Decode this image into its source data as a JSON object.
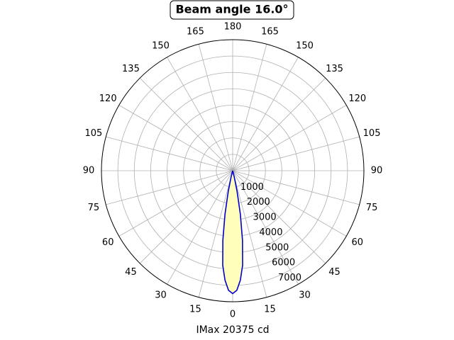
{
  "chart_data": {
    "type": "polar",
    "title": "Beam angle 16.0°",
    "xlabel": "IMax 20375 cd",
    "rlim": [
      0,
      8000
    ],
    "rticks": [
      1000,
      2000,
      3000,
      4000,
      5000,
      6000,
      7000
    ],
    "thetaticks": [
      0,
      15,
      30,
      45,
      60,
      75,
      90,
      105,
      120,
      135,
      150,
      165,
      180,
      {
        "value": -165,
        "label": "165"
      },
      {
        "value": -150,
        "label": "150"
      },
      {
        "value": -135,
        "label": "135"
      },
      {
        "value": -120,
        "label": "120"
      },
      {
        "value": -105,
        "label": "105"
      },
      {
        "value": -90,
        "label": "90"
      },
      {
        "value": -75,
        "label": "75"
      },
      {
        "value": -60,
        "label": "60"
      },
      {
        "value": -45,
        "label": "45"
      },
      {
        "value": -30,
        "label": "30"
      },
      {
        "value": -15,
        "label": "15"
      }
    ],
    "grid": true,
    "series": [
      {
        "color": "#0000cc",
        "fill": "#ffffbb",
        "theta": [
          -16,
          -14,
          -12,
          -10,
          -8,
          -6,
          -4,
          -2,
          0,
          2,
          4,
          6,
          8,
          10,
          12,
          14,
          16
        ],
        "r": [
          0,
          400,
          1300,
          2700,
          4300,
          5800,
          6700,
          7300,
          7500,
          7300,
          6700,
          5800,
          4300,
          2700,
          1300,
          400,
          0
        ]
      }
    ]
  }
}
